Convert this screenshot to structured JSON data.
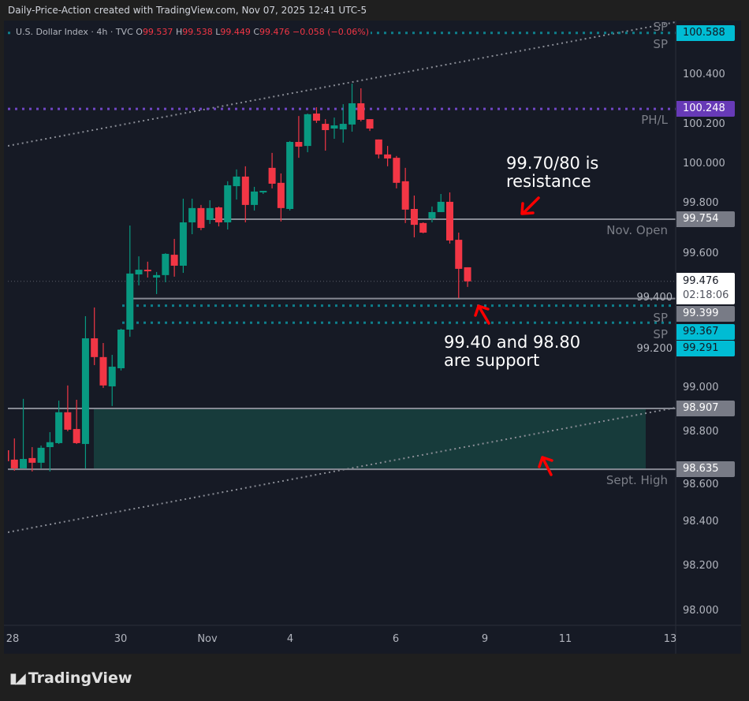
{
  "credit": "Daily-Price-Action created with TradingView.com, Nov 07, 2025 12:41 UTC-5",
  "legend": {
    "symbol": "U.S. Dollar Index · 4h · TVC",
    "o_label": "O",
    "o": "99.537",
    "h_label": "H",
    "h": "99.538",
    "l_label": "L",
    "l": "99.449",
    "c_label": "C",
    "c": "99.476",
    "change": "−0.058 (−0.06%)"
  },
  "colors": {
    "up": "#089981",
    "down": "#f23645",
    "background": "#161a25",
    "support_level": "#00bcd4",
    "pivot": "#673ab7",
    "level_line": "#868993",
    "zone": "#173b3b",
    "annotation_arrow": "#ff0000"
  },
  "chart_data": {
    "type": "candlestick",
    "title": "U.S. Dollar Index · 4h · TVC",
    "ylim": [
      97.93,
      100.65
    ],
    "grid": false,
    "y_ticks": [
      "100.400",
      "100.200",
      "100.000",
      "99.800",
      "99.600",
      "99.400",
      "99.200",
      "99.000",
      "98.800",
      "98.600",
      "98.400",
      "98.200",
      "98.000"
    ],
    "x_ticks": [
      "28",
      "30",
      "Nov",
      "4",
      "6",
      "9",
      "11",
      "13"
    ],
    "candles_ohlc": [
      [
        98.72,
        98.72,
        98.671,
        98.671
      ],
      [
        98.678,
        98.773,
        98.628,
        98.639
      ],
      [
        98.639,
        98.95,
        98.639,
        98.681
      ],
      [
        98.685,
        98.734,
        98.625,
        98.664
      ],
      [
        98.664,
        98.741,
        98.639,
        98.731
      ],
      [
        98.734,
        98.801,
        98.625,
        98.756
      ],
      [
        98.752,
        98.942,
        98.748,
        98.89
      ],
      [
        98.89,
        99.01,
        98.805,
        98.812
      ],
      [
        98.815,
        98.946,
        98.748,
        98.752
      ],
      [
        98.748,
        99.32,
        98.639,
        99.221
      ],
      [
        99.221,
        99.359,
        99.101,
        99.137
      ],
      [
        99.137,
        99.2,
        98.999,
        99.01
      ],
      [
        99.006,
        99.147,
        98.918,
        99.094
      ],
      [
        99.087,
        99.264,
        99.077,
        99.26
      ],
      [
        99.26,
        99.726,
        99.228,
        99.511
      ],
      [
        99.507,
        99.588,
        99.458,
        99.528
      ],
      [
        99.528,
        99.564,
        99.493,
        99.521
      ],
      [
        99.493,
        99.518,
        99.419,
        99.504
      ],
      [
        99.504,
        99.602,
        99.472,
        99.599
      ],
      [
        99.595,
        99.666,
        99.497,
        99.546
      ],
      [
        99.546,
        99.846,
        99.514,
        99.74
      ],
      [
        99.74,
        99.846,
        99.687,
        99.804
      ],
      [
        99.804,
        99.818,
        99.705,
        99.715
      ],
      [
        99.751,
        99.839,
        99.733,
        99.804
      ],
      [
        99.807,
        99.811,
        99.722,
        99.74
      ],
      [
        99.74,
        99.924,
        99.708,
        99.906
      ],
      [
        99.902,
        99.977,
        99.842,
        99.945
      ],
      [
        99.945,
        99.991,
        99.74,
        99.818
      ],
      [
        99.818,
        99.899,
        99.793,
        99.878
      ],
      [
        99.874,
        99.881,
        99.867,
        99.881
      ],
      [
        99.984,
        100.051,
        99.892,
        99.913
      ],
      [
        99.917,
        99.959,
        99.744,
        99.804
      ],
      [
        99.8,
        100.104,
        99.793,
        100.1
      ],
      [
        100.1,
        100.216,
        100.029,
        100.079
      ],
      [
        100.082,
        100.227,
        100.054,
        100.224
      ],
      [
        100.227,
        100.255,
        100.185,
        100.195
      ],
      [
        100.181,
        100.202,
        100.061,
        100.153
      ],
      [
        100.16,
        100.209,
        100.114,
        100.174
      ],
      [
        100.156,
        100.269,
        100.097,
        100.181
      ],
      [
        100.178,
        100.361,
        100.146,
        100.273
      ],
      [
        100.273,
        100.34,
        100.192,
        100.199
      ],
      [
        100.202,
        100.202,
        100.149,
        100.16
      ],
      [
        100.111,
        100.111,
        100.026,
        100.044
      ],
      [
        100.044,
        100.082,
        99.991,
        100.026
      ],
      [
        100.029,
        100.037,
        99.892,
        99.917
      ],
      [
        99.924,
        99.984,
        99.737,
        99.797
      ],
      [
        99.8,
        99.86,
        99.673,
        99.729
      ],
      [
        99.737,
        99.74,
        99.691,
        99.694
      ],
      [
        99.758,
        99.811,
        99.74,
        99.786
      ],
      [
        99.786,
        99.867,
        99.786,
        99.832
      ],
      [
        99.832,
        99.874,
        99.645,
        99.659
      ],
      [
        99.662,
        99.694,
        99.401,
        99.532
      ],
      [
        99.539,
        99.539,
        99.451,
        99.476
      ]
    ],
    "levels": [
      {
        "price": 100.588,
        "tag": "100.588",
        "label": "SP",
        "label2": "SP",
        "style": "dotted",
        "color": "#00bcd4"
      },
      {
        "price": 100.248,
        "tag": "100.248",
        "label": "PH/L",
        "style": "dotted",
        "color": "#673ab7"
      },
      {
        "price": 99.754,
        "tag": "99.754",
        "label": "Nov. Open",
        "style": "solid",
        "color": "#868993"
      },
      {
        "price": 99.399,
        "tag": "99.399",
        "style": "solid",
        "color": "#868993"
      },
      {
        "price": 99.367,
        "tag": "99.367",
        "label": "SP",
        "style": "dotted",
        "color": "#00bcd4"
      },
      {
        "price": 99.291,
        "tag": "99.291",
        "label": "SP",
        "style": "dotted",
        "color": "#00bcd4"
      },
      {
        "price": 98.907,
        "tag": "98.907",
        "style": "solid",
        "color": "#868993"
      },
      {
        "price": 98.635,
        "tag": "98.635",
        "label": "Sept. High",
        "style": "solid",
        "color": "#868993"
      }
    ],
    "last_price": {
      "price": 99.476,
      "tag": "99.476",
      "countdown": "02:18:06"
    },
    "zone": {
      "top": 98.907,
      "bottom": 98.635
    },
    "annotations": [
      {
        "line1": "99.70/80 is",
        "line2": "resistance"
      },
      {
        "line1": "99.40 and 98.80",
        "line2": "are support"
      }
    ]
  },
  "branding": {
    "logo_text": "TradingView",
    "logo_mark": "TV"
  }
}
